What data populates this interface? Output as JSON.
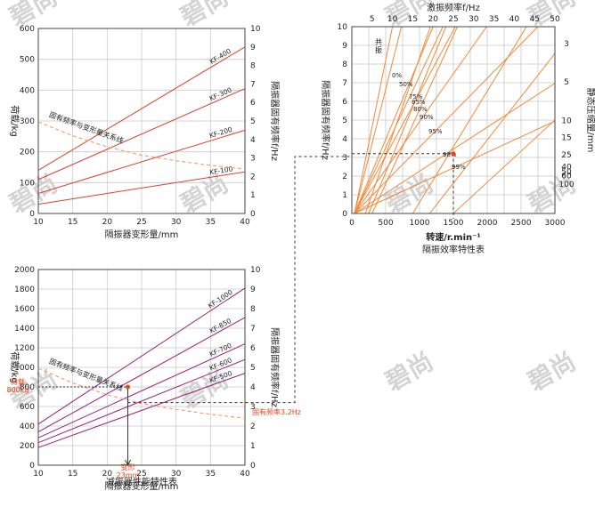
{
  "watermark_text": "碧尚",
  "colors": {
    "load_line": "#d9402e",
    "freq_curve": "#f4a070",
    "purple": "#9b1f7e",
    "orange": "#f08a3a",
    "grid": "#c9c9c9",
    "annot": "#e8441a"
  },
  "chart_data": [
    {
      "type": "line",
      "xlabel": "隔振器变形量/mm",
      "ylabel_left": "荷载/kg",
      "ylabel_right": "隔振器固有频率f/Hz",
      "xlim": [
        10,
        40
      ],
      "ylim_left": [
        0,
        600
      ],
      "ylim_right": [
        0,
        10
      ],
      "x_ticks": [
        "10",
        "15",
        "20",
        "25",
        "30",
        "35",
        "40"
      ],
      "y_left_ticks": [
        "0",
        "100",
        "200",
        "300",
        "400",
        "500",
        "600"
      ],
      "y_right_ticks": [
        "0",
        "1",
        "2",
        "3",
        "4",
        "5",
        "6",
        "7",
        "8",
        "9",
        "10"
      ],
      "series": [
        {
          "name": "KF-400",
          "x": [
            10,
            40
          ],
          "y": [
            140,
            540
          ]
        },
        {
          "name": "KF-300",
          "x": [
            10,
            40
          ],
          "y": [
            110,
            405
          ]
        },
        {
          "name": "KF-200",
          "x": [
            10,
            40
          ],
          "y": [
            65,
            270
          ]
        },
        {
          "name": "KF-100",
          "x": [
            10,
            40
          ],
          "y": [
            30,
            135
          ]
        }
      ],
      "curve": {
        "name": "固有频率与变形量关系线",
        "x": [
          10,
          15,
          20,
          25,
          30,
          35,
          40
        ],
        "f": [
          4.95,
          4.2,
          3.6,
          3.15,
          2.85,
          2.6,
          2.4
        ]
      }
    },
    {
      "type": "line",
      "title": "减振器性能特性表",
      "xlabel": "隔振器变形量/mm",
      "ylabel_left": "荷载/kg",
      "ylabel_right": "隔振器固有频率f/Hz",
      "xlim": [
        10,
        40
      ],
      "ylim_left": [
        0,
        2000
      ],
      "ylim_right": [
        0,
        10
      ],
      "x_ticks": [
        "10",
        "15",
        "20",
        "25",
        "30",
        "35",
        "40"
      ],
      "y_left_ticks": [
        "0",
        "200",
        "400",
        "600",
        "800",
        "1000",
        "1200",
        "1400",
        "1600",
        "1800",
        "2000"
      ],
      "y_right_ticks": [
        "0",
        "1",
        "2",
        "3",
        "4",
        "5",
        "6",
        "7",
        "8",
        "9",
        "10"
      ],
      "series": [
        {
          "name": "KF-1000",
          "x": [
            10,
            40
          ],
          "y": [
            420,
            1810
          ]
        },
        {
          "name": "KF-850",
          "x": [
            10,
            40
          ],
          "y": [
            340,
            1510
          ]
        },
        {
          "name": "KF-700",
          "x": [
            10,
            40
          ],
          "y": [
            280,
            1240
          ]
        },
        {
          "name": "KF-600",
          "x": [
            10,
            40
          ],
          "y": [
            230,
            1080
          ]
        },
        {
          "name": "KF-500",
          "x": [
            10,
            40
          ],
          "y": [
            180,
            940
          ]
        }
      ],
      "curve": {
        "name": "固有频率与变形量关系线",
        "x": [
          10,
          15,
          20,
          25,
          30,
          35,
          40
        ],
        "f": [
          4.95,
          4.2,
          3.6,
          3.15,
          2.85,
          2.6,
          2.4
        ]
      },
      "annotations": {
        "load_label": "荷载",
        "load_value": "800kg",
        "defl_label": "变形",
        "defl_value": "23mm",
        "freq_label": "固有频率3.2Hz",
        "load": 800,
        "deflection": 23,
        "freq": 3.2
      }
    },
    {
      "type": "line",
      "title": "隔振效率特性表",
      "top_axis_label": "激振频率f/Hz",
      "xlabel": "转速/r.min⁻¹",
      "ylabel_left": "隔振器固有频率f/Hz",
      "ylabel_right": "静态压缩量/mm",
      "xlim": [
        0,
        3000
      ],
      "ylim": [
        0,
        10
      ],
      "x_ticks": [
        "0",
        "500",
        "1000",
        "1500",
        "2000",
        "2500",
        "3000"
      ],
      "top_ticks": [
        {
          "v": 5,
          "t": "5"
        },
        {
          "v": 10,
          "t": "10"
        },
        {
          "v": 15,
          "t": "15"
        },
        {
          "v": 20,
          "t": "20"
        },
        {
          "v": 25,
          "t": "25"
        },
        {
          "v": 30,
          "t": "30"
        },
        {
          "v": 35,
          "t": "35"
        },
        {
          "v": 40,
          "t": "40"
        },
        {
          "v": 45,
          "t": "45"
        },
        {
          "v": 50,
          "t": "50"
        }
      ],
      "y_ticks": [
        "0",
        "1",
        "2",
        "3",
        "4",
        "5",
        "6",
        "7",
        "8",
        "9",
        "10"
      ],
      "right_ticks": [
        {
          "v": 3,
          "t": "3"
        },
        {
          "v": 5,
          "t": "5"
        },
        {
          "v": 10,
          "t": "10"
        },
        {
          "v": 15,
          "t": "15"
        },
        {
          "v": 25,
          "t": "25"
        },
        {
          "v": 40,
          "t": "40"
        },
        {
          "v": 50,
          "t": "50"
        },
        {
          "v": 60,
          "t": "60"
        },
        {
          "v": 100,
          "t": "100"
        }
      ],
      "resonance_label": "共振",
      "efficiency_lines": [
        {
          "label": "0%",
          "ratio": 1.0
        },
        {
          "label": "50%",
          "ratio": 1.22
        },
        {
          "label": "75%",
          "ratio": 2.0
        },
        {
          "label": "85%",
          "ratio": 2.55
        },
        {
          "label": "80%",
          "ratio": 2.24
        },
        {
          "label": "90%",
          "ratio": 3.32
        },
        {
          "label": "95%",
          "ratio": 4.58
        },
        {
          "label": "98%",
          "ratio": 7.14
        },
        {
          "label": "99%",
          "ratio": 10.05
        }
      ],
      "extra_lines": [
        {
          "x0": 200,
          "ratio": 1.6
        },
        {
          "x0": 250,
          "ratio": 1.9
        },
        {
          "x0": 300,
          "ratio": 2.1
        },
        {
          "x0": 900,
          "ratio": 2.8
        },
        {
          "x0": 1150,
          "ratio": 3.6
        },
        {
          "x0": 1500,
          "ratio": 5.0
        }
      ],
      "operating_point": {
        "rpm": 1500,
        "f": 3.2
      }
    }
  ]
}
